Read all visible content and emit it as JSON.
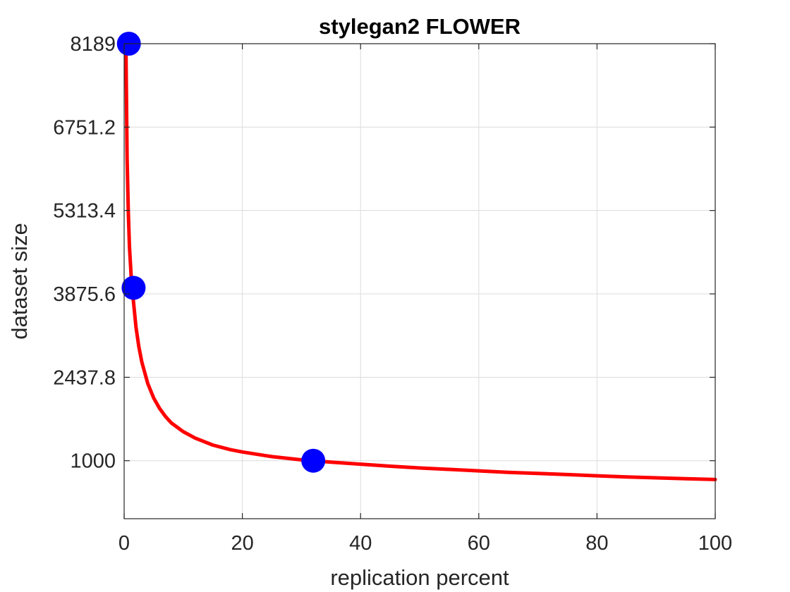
{
  "chart_data": {
    "type": "line",
    "title": "stylegan2 FLOWER",
    "xlabel": "replication percent",
    "ylabel": "dataset size",
    "xlim": [
      0,
      100
    ],
    "ylim": [
      0,
      8189
    ],
    "grid": true,
    "x_ticks": [
      0,
      20,
      40,
      60,
      80,
      100
    ],
    "x_tick_labels": [
      "0",
      "20",
      "40",
      "60",
      "80",
      "100"
    ],
    "y_ticks": [
      1000,
      2437.8,
      3875.6,
      5313.4,
      6751.2,
      8189
    ],
    "y_tick_labels": [
      "1000",
      "2437.8",
      "3875.6",
      "5313.4",
      "6751.2",
      "8189"
    ],
    "series": [
      {
        "color": "#ff0000",
        "style": "line",
        "x": [
          0.3,
          0.5,
          0.7,
          0.9,
          1.2,
          1.5,
          2,
          2.5,
          3,
          4,
          5,
          6,
          7,
          8,
          10,
          12,
          15,
          18,
          20,
          25,
          30,
          32,
          35,
          40,
          45,
          50,
          55,
          60,
          65,
          70,
          75,
          80,
          85,
          90,
          95,
          100
        ],
        "y": [
          8189,
          6200,
          5300,
          4700,
          4150,
          3820,
          3300,
          2960,
          2700,
          2330,
          2080,
          1900,
          1760,
          1650,
          1500,
          1390,
          1270,
          1190,
          1150,
          1070,
          1015,
          1000,
          975,
          940,
          905,
          875,
          850,
          825,
          800,
          780,
          760,
          740,
          720,
          705,
          690,
          675
        ]
      },
      {
        "color": "#0000ff",
        "style": "marker",
        "x": [
          0.8,
          1.6,
          32
        ],
        "y": [
          8189,
          3980,
          1000
        ]
      }
    ]
  }
}
